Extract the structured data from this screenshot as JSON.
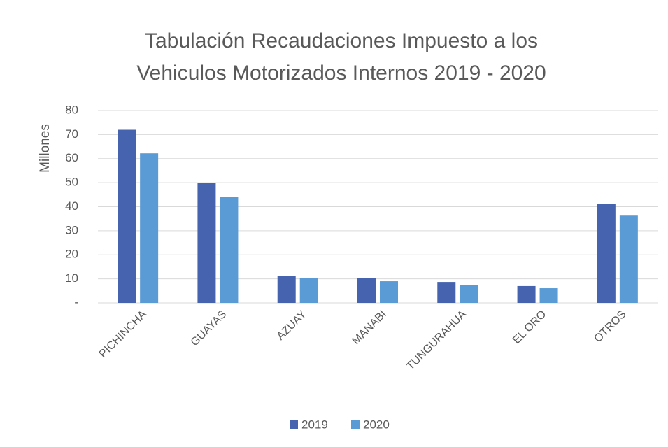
{
  "chart_data": {
    "type": "bar",
    "title": [
      "Tabulación Recaudaciones Impuesto a los",
      "Vehiculos Motorizados Internos 2019 - 2020"
    ],
    "y_label": "Millones",
    "categories": [
      "PICHINCHA",
      "GUAYAS",
      "AZUAY",
      "MANABI",
      "TUNGURAHUA",
      "EL ORO",
      "OTROS"
    ],
    "series": [
      {
        "name": "2019",
        "color": "#4563ae",
        "values": [
          72,
          50,
          11.3,
          10.2,
          8.7,
          7.0,
          41.3
        ]
      },
      {
        "name": "2020",
        "color": "#5b9bd5",
        "values": [
          62.2,
          44,
          10.2,
          9.0,
          7.3,
          6.1,
          36.3
        ]
      }
    ],
    "ylim": [
      0,
      80
    ],
    "yticks": [
      {
        "value": 0,
        "label": "-"
      },
      10,
      20,
      30,
      40,
      50,
      60,
      70,
      80
    ],
    "grid": true,
    "legend": "bottom"
  }
}
